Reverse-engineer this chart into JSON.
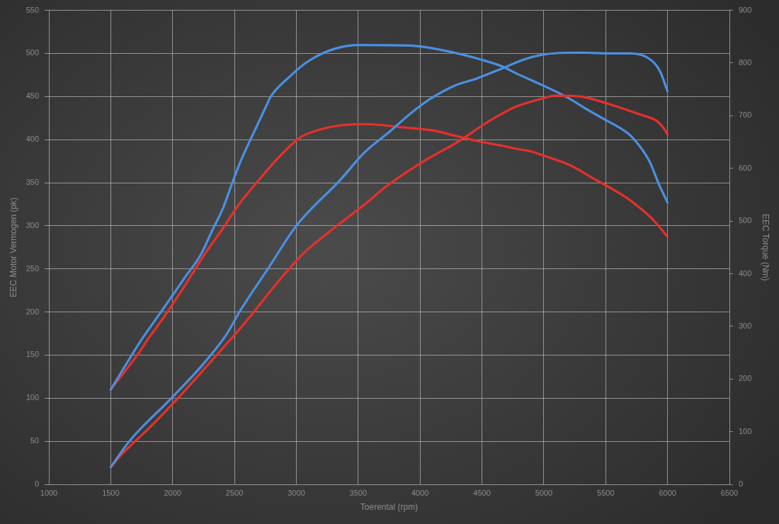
{
  "chart_data": {
    "type": "line",
    "xlabel": "Toerental (rpm)",
    "ylabel": "EEC Motor Vermogen (pk)",
    "y2label": "EEC Torque (Nm)",
    "xlim": [
      1000,
      6500
    ],
    "xticks": [
      1000,
      1500,
      2000,
      2500,
      3000,
      3500,
      4000,
      4500,
      5000,
      5500,
      6000,
      6500
    ],
    "ylim": [
      0,
      550
    ],
    "yticks": [
      0,
      50,
      100,
      150,
      200,
      250,
      300,
      350,
      400,
      450,
      500,
      550
    ],
    "y2lim": [
      0,
      900
    ],
    "y2ticks": [
      0,
      100,
      200,
      300,
      400,
      500,
      600,
      700,
      800,
      900
    ],
    "grid": true,
    "series": [
      {
        "type": "line",
        "color": "#4a90e2",
        "x": [
          1500,
          1650,
          1990,
          2250,
          2440,
          2540,
          2770,
          3000,
          3360,
          3550,
          3760,
          3920,
          4080,
          4270,
          4460,
          4670,
          4840,
          5010,
          5300,
          5530,
          5700,
          5870,
          5940,
          6000
        ],
        "values": [
          20,
          50,
          100,
          140,
          175,
          200,
          250,
          300,
          354,
          385,
          410,
          430,
          447,
          462,
          471,
          483,
          493,
          499,
          501,
          500,
          500,
          492,
          479,
          456
        ]
      },
      {
        "type": "line",
        "color": "#e8302a",
        "x": [
          1500,
          1590,
          1800,
          2050,
          2300,
          2510,
          2640,
          2840,
          3050,
          3240,
          3580,
          3720,
          3910,
          4030,
          4300,
          4520,
          4660,
          4770,
          4970,
          5100,
          5300,
          5510,
          5680,
          5800,
          5910,
          5970,
          6000
        ],
        "values": [
          20,
          35,
          64,
          101,
          141,
          175,
          197,
          233,
          267,
          290,
          328,
          345,
          364,
          375,
          397,
          418,
          430,
          438,
          447,
          451,
          450,
          442,
          434,
          428,
          422,
          413,
          406
        ]
      },
      {
        "type": "line",
        "color": "#4a90e2",
        "axis": "y2",
        "x": [
          1500,
          1750,
          1860,
          2000,
          2100,
          2230,
          2320,
          2410,
          2480,
          2540,
          2630,
          2760,
          2790,
          2950,
          3100,
          3310,
          3510,
          3920,
          4230,
          4500,
          4670,
          4780,
          4950,
          5180,
          5370,
          5490,
          5620,
          5710,
          5850,
          5930,
          6000
        ],
        "values": [
          180,
          275,
          312,
          359,
          393,
          437,
          482,
          526,
          571,
          608,
          655,
          720,
          735,
          775,
          804,
          827,
          834,
          833,
          822,
          806,
          793,
          780,
          762,
          736,
          709,
          693,
          676,
          660,
          615,
          570,
          535
        ]
      },
      {
        "type": "line",
        "color": "#e8302a",
        "axis": "y2",
        "x": [
          1500,
          1740,
          1790,
          1940,
          2090,
          2260,
          2400,
          2550,
          2680,
          2830,
          2990,
          3040,
          3370,
          3560,
          3850,
          4100,
          4300,
          4460,
          4660,
          4780,
          4900,
          4990,
          5230,
          5390,
          5530,
          5670,
          5770,
          5850,
          5930,
          6000
        ],
        "values": [
          180,
          254,
          272,
          321,
          374,
          437,
          484,
          536,
          573,
          614,
          651,
          660,
          682,
          684,
          678,
          672,
          661,
          652,
          643,
          637,
          632,
          625,
          604,
          582,
          564,
          544,
          526,
          510,
          490,
          470
        ]
      }
    ]
  }
}
